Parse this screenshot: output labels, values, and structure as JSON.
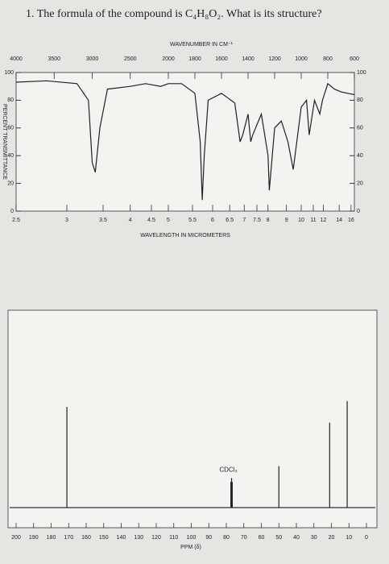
{
  "title": "1. The formula of the compound is C₄H₈O₂. What is its structure?",
  "chart_data": [
    {
      "type": "line",
      "title": "WAVENUMBER IN CM⁻¹",
      "xlabel": "WAVELENGTH IN MICROMETERS",
      "ylabel": "PERCENT TRANSMITTANCE",
      "x": [
        4000,
        3600,
        3200,
        3050,
        3000,
        2960,
        2900,
        2800,
        2500,
        2300,
        2100,
        2000,
        1900,
        1800,
        1760,
        1745,
        1730,
        1700,
        1600,
        1500,
        1460,
        1440,
        1400,
        1380,
        1365,
        1300,
        1250,
        1240,
        1200,
        1150,
        1100,
        1060,
        1040,
        1000,
        960,
        940,
        900,
        860,
        840,
        800,
        750,
        700,
        650,
        600
      ],
      "values": [
        93,
        94,
        92,
        80,
        35,
        28,
        60,
        88,
        90,
        92,
        90,
        92,
        92,
        85,
        50,
        8,
        40,
        80,
        85,
        78,
        50,
        55,
        70,
        50,
        55,
        70,
        40,
        15,
        60,
        65,
        50,
        30,
        45,
        75,
        80,
        55,
        80,
        70,
        80,
        92,
        88,
        86,
        85,
        84
      ],
      "color": "#222",
      "xlim": [
        4000,
        600
      ],
      "x_scale_break": 2000,
      "xticks": [
        4000,
        3500,
        3000,
        2500,
        2000,
        1800,
        1600,
        1400,
        1200,
        1000,
        800,
        600
      ],
      "x2ticks": [
        2.5,
        3,
        3.5,
        4,
        4.5,
        5,
        5.5,
        6,
        6.5,
        7,
        7.5,
        8,
        9,
        10,
        11,
        12,
        14,
        16
      ],
      "ylim": [
        0,
        100
      ],
      "yticks": [
        0,
        20,
        40,
        60,
        80,
        100
      ]
    },
    {
      "type": "spectrum",
      "xlabel": "PPM (δ)",
      "annotation": "CDCl₃",
      "x": [
        171,
        77.4,
        77,
        76.6,
        50,
        21,
        11
      ],
      "values": [
        51,
        13,
        15,
        13,
        21,
        43,
        54
      ],
      "color": "#222",
      "xlim": [
        200,
        0
      ],
      "xticks": [
        200,
        190,
        180,
        170,
        160,
        150,
        140,
        130,
        120,
        110,
        100,
        90,
        80,
        70,
        60,
        50,
        40,
        30,
        20,
        10,
        0
      ],
      "ylim": [
        0,
        100
      ]
    }
  ]
}
